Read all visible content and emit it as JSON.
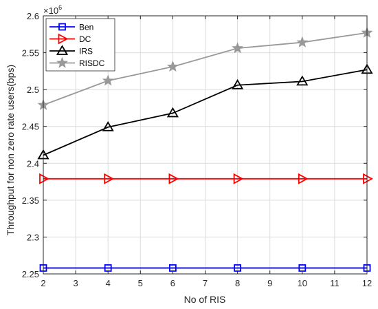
{
  "chart_data": {
    "type": "line",
    "xlabel": "No of RIS",
    "ylabel": "Throughput for non zero rate users(bps)",
    "y_multiplier": "×10",
    "y_exponent": "6",
    "xlim": [
      2,
      12
    ],
    "ylim": [
      2.25,
      2.6
    ],
    "xticks": [
      2,
      3,
      4,
      5,
      6,
      7,
      8,
      9,
      10,
      11,
      12
    ],
    "yticks": [
      2.25,
      2.3,
      2.35,
      2.4,
      2.45,
      2.5,
      2.55,
      2.6
    ],
    "ytick_labels": [
      "2.25",
      "2.3",
      "2.35",
      "2.4",
      "2.45",
      "2.5",
      "2.55",
      "2.6"
    ],
    "grid": true,
    "legend_position": "top-left",
    "x": [
      2,
      4,
      6,
      8,
      10,
      12
    ],
    "series": [
      {
        "name": "Ben",
        "color": "#0000ff",
        "marker": "square",
        "values": [
          2.258,
          2.258,
          2.258,
          2.258,
          2.258,
          2.258
        ]
      },
      {
        "name": "DC",
        "color": "#ff0000",
        "marker": "triangle-right",
        "values": [
          2.379,
          2.379,
          2.379,
          2.379,
          2.379,
          2.379
        ]
      },
      {
        "name": "IRS",
        "color": "#000000",
        "marker": "triangle-up",
        "values": [
          2.411,
          2.449,
          2.468,
          2.506,
          2.511,
          2.527
        ]
      },
      {
        "name": "RISDC",
        "color": "#999999",
        "marker": "star",
        "values": [
          2.479,
          2.512,
          2.531,
          2.556,
          2.564,
          2.577
        ]
      }
    ]
  }
}
